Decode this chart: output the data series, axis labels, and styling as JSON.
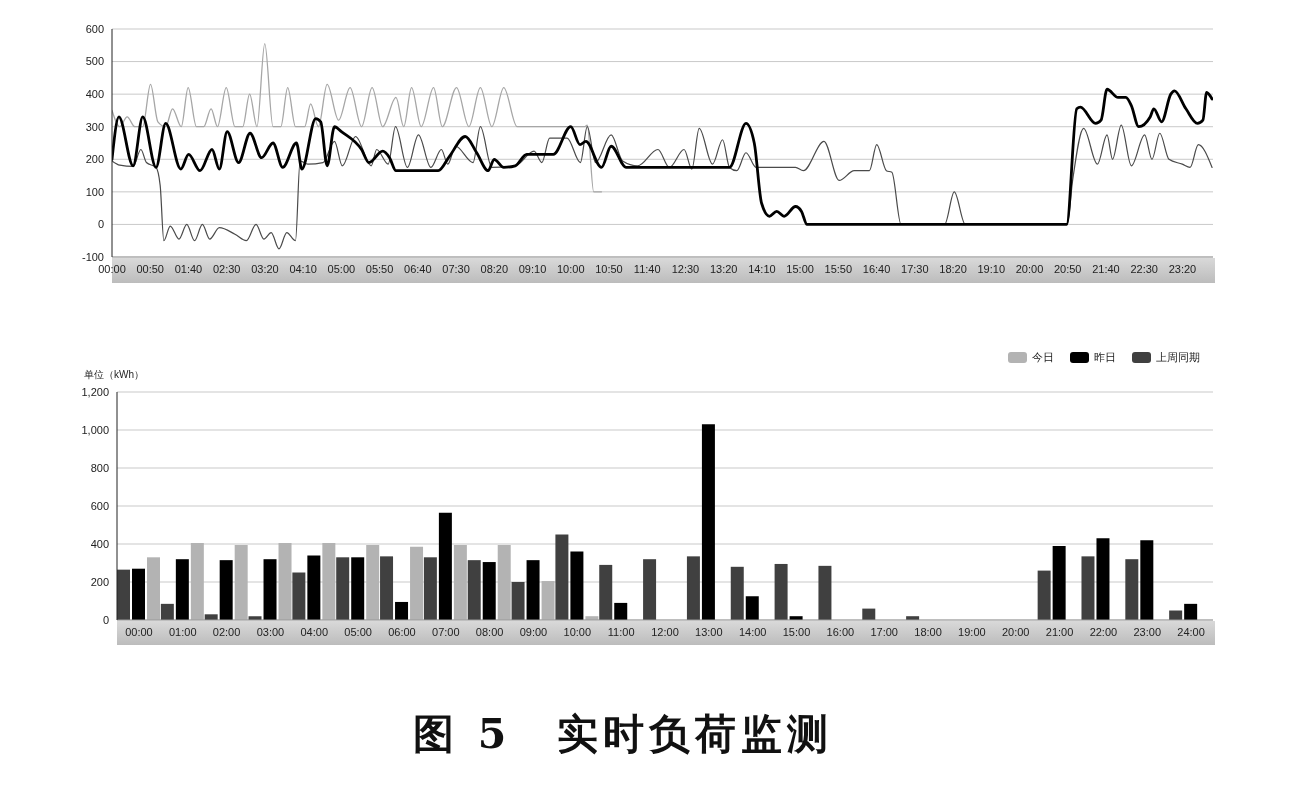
{
  "chart_data": [
    {
      "type": "line",
      "xlim": [
        0,
        24
      ],
      "xticks": [
        {
          "value": 0,
          "label": "00:00"
        },
        {
          "value": 0.8333,
          "label": "00:50"
        },
        {
          "value": 1.6667,
          "label": "01:40"
        },
        {
          "value": 2.5,
          "label": "02:30"
        },
        {
          "value": 3.3333,
          "label": "03:20"
        },
        {
          "value": 4.1667,
          "label": "04:10"
        },
        {
          "value": 5,
          "label": "05:00"
        },
        {
          "value": 5.8333,
          "label": "05:50"
        },
        {
          "value": 6.6667,
          "label": "06:40"
        },
        {
          "value": 7.5,
          "label": "07:30"
        },
        {
          "value": 8.3333,
          "label": "08:20"
        },
        {
          "value": 9.1667,
          "label": "09:10"
        },
        {
          "value": 10,
          "label": "10:00"
        },
        {
          "value": 10.8333,
          "label": "10:50"
        },
        {
          "value": 11.6667,
          "label": "11:40"
        },
        {
          "value": 12.5,
          "label": "12:30"
        },
        {
          "value": 13.3333,
          "label": "13:20"
        },
        {
          "value": 14.1667,
          "label": "14:10"
        },
        {
          "value": 15,
          "label": "15:00"
        },
        {
          "value": 15.8333,
          "label": "15:50"
        },
        {
          "value": 16.6667,
          "label": "16:40"
        },
        {
          "value": 17.5,
          "label": "17:30"
        },
        {
          "value": 18.3333,
          "label": "18:20"
        },
        {
          "value": 19.1667,
          "label": "19:10"
        },
        {
          "value": 20,
          "label": "20:00"
        },
        {
          "value": 20.8333,
          "label": "20:50"
        },
        {
          "value": 21.6667,
          "label": "21:40"
        },
        {
          "value": 22.5,
          "label": "22:30"
        },
        {
          "value": 23.3333,
          "label": "23:20"
        }
      ],
      "ylim": [
        -100,
        600
      ],
      "yticks": [
        -100,
        0,
        100,
        200,
        300,
        400,
        500,
        600
      ],
      "grid": "y",
      "marker": "none",
      "line_style": "solid",
      "series": [
        {
          "color": "#a6a6a6",
          "x": [
            0,
            0.17,
            0.33,
            0.5,
            0.67,
            0.84,
            1.0,
            1.17,
            1.32,
            1.51,
            1.66,
            1.84,
            2.0,
            2.16,
            2.3,
            2.49,
            2.68,
            2.85,
            3.0,
            3.16,
            3.33,
            3.51,
            3.68,
            3.83,
            4.0,
            4.2,
            4.33,
            4.5,
            4.69,
            4.94,
            5.19,
            5.44,
            5.67,
            5.9,
            6.19,
            6.36,
            6.53,
            6.74,
            7.01,
            7.2,
            7.51,
            7.78,
            8.03,
            8.28,
            8.54,
            8.83,
            10.3,
            10.36,
            10.5,
            10.67
          ],
          "values": [
            350,
            300,
            330,
            300,
            300,
            430,
            315,
            300,
            355,
            300,
            420,
            300,
            300,
            355,
            300,
            420,
            300,
            300,
            400,
            300,
            555,
            300,
            300,
            420,
            300,
            300,
            370,
            300,
            430,
            320,
            420,
            300,
            420,
            300,
            390,
            300,
            420,
            300,
            420,
            300,
            420,
            300,
            420,
            300,
            420,
            300,
            300,
            305,
            100,
            100
          ]
        },
        {
          "color": "#4a4a4a",
          "x": [
            0,
            0.17,
            0.46,
            0.63,
            0.75,
            0.96,
            1.05,
            1.13,
            1.27,
            1.46,
            1.63,
            1.8,
            1.97,
            2.13,
            2.34,
            2.68,
            2.93,
            3.14,
            3.31,
            3.47,
            3.64,
            3.81,
            4.0,
            4.1,
            4.27,
            4.6,
            4.85,
            5.02,
            5.31,
            5.65,
            5.77,
            6.02,
            6.18,
            6.44,
            6.68,
            6.95,
            7.18,
            7.32,
            7.49,
            7.87,
            8.03,
            8.28,
            8.79,
            9.2,
            9.37,
            9.54,
            9.92,
            10.21,
            10.36,
            10.54,
            10.88,
            11.13,
            11.46,
            11.9,
            12.15,
            12.47,
            12.64,
            12.8,
            13.09,
            13.31,
            13.46,
            13.62,
            13.82,
            14.04,
            14.9,
            15.07,
            15.52,
            15.85,
            16.18,
            16.51,
            16.67,
            16.88,
            17.0,
            17.2,
            18.15,
            18.36,
            18.6,
            20.82,
            20.94,
            21.18,
            21.48,
            21.69,
            21.81,
            22.0,
            22.22,
            22.51,
            22.67,
            22.84,
            23.04,
            23.33,
            23.5,
            23.68,
            23.98
          ],
          "values": [
            195,
            182,
            178,
            230,
            190,
            175,
            120,
            -50,
            -5,
            -45,
            0,
            -50,
            0,
            -45,
            -10,
            -30,
            -50,
            0,
            -45,
            -25,
            -75,
            -25,
            -50,
            195,
            185,
            190,
            255,
            180,
            270,
            180,
            230,
            185,
            300,
            175,
            275,
            175,
            230,
            185,
            240,
            190,
            300,
            175,
            180,
            225,
            190,
            265,
            265,
            190,
            300,
            190,
            275,
            195,
            180,
            230,
            175,
            230,
            170,
            295,
            185,
            260,
            175,
            165,
            220,
            175,
            175,
            165,
            255,
            135,
            165,
            165,
            245,
            165,
            160,
            0,
            0,
            100,
            0,
            0,
            135,
            295,
            185,
            275,
            200,
            305,
            180,
            275,
            200,
            280,
            200,
            185,
            175,
            245,
            175
          ]
        },
        {
          "color": "#000000",
          "x": [
            0,
            0.15,
            0.46,
            0.67,
            0.96,
            1.17,
            1.5,
            1.67,
            1.92,
            2.18,
            2.34,
            2.51,
            2.76,
            3.01,
            3.26,
            3.51,
            3.72,
            4.02,
            4.14,
            4.44,
            4.55,
            4.69,
            4.85,
            5.0,
            5.44,
            5.6,
            5.9,
            6.05,
            6.19,
            7.11,
            7.36,
            7.7,
            7.95,
            8.2,
            8.33,
            8.54,
            8.79,
            9.04,
            9.62,
            10.0,
            10.2,
            10.33,
            10.67,
            10.88,
            11.21,
            13.46,
            13.82,
            14.0,
            14.16,
            14.33,
            14.49,
            14.65,
            14.9,
            15.03,
            15.15,
            20.81,
            21.03,
            21.11,
            21.44,
            21.56,
            21.69,
            21.93,
            22.1,
            22.22,
            22.38,
            22.63,
            22.71,
            22.88,
            23.08,
            23.16,
            23.41,
            23.66,
            23.78,
            23.86,
            23.98
          ],
          "values": [
            200,
            330,
            180,
            330,
            175,
            310,
            170,
            215,
            165,
            230,
            170,
            285,
            190,
            280,
            205,
            250,
            175,
            250,
            170,
            325,
            315,
            180,
            300,
            285,
            230,
            190,
            225,
            205,
            165,
            165,
            210,
            270,
            220,
            165,
            200,
            175,
            180,
            215,
            215,
            300,
            245,
            255,
            175,
            240,
            175,
            175,
            310,
            250,
            65,
            25,
            40,
            25,
            55,
            40,
            0,
            0,
            355,
            360,
            310,
            320,
            415,
            390,
            390,
            365,
            300,
            330,
            355,
            315,
            400,
            410,
            355,
            310,
            320,
            405,
            385
          ]
        }
      ]
    },
    {
      "type": "bar",
      "ylabel": "单位（kWh）",
      "categories": [
        "00:00",
        "01:00",
        "02:00",
        "03:00",
        "04:00",
        "05:00",
        "06:00",
        "07:00",
        "08:00",
        "09:00",
        "10:00",
        "11:00",
        "12:00",
        "13:00",
        "14:00",
        "15:00",
        "16:00",
        "17:00",
        "18:00",
        "19:00",
        "20:00",
        "21:00",
        "22:00",
        "23:00",
        "24:00"
      ],
      "ylim": [
        0,
        1200
      ],
      "yticks": [
        0,
        200,
        400,
        600,
        800,
        {
          "value": 1000,
          "label": "1,000"
        },
        {
          "value": 1200,
          "label": "1,200"
        }
      ],
      "grid": "y",
      "legend": "top right",
      "series": [
        {
          "name": "今日",
          "color": "#b3b3b3",
          "values": [
            330,
            405,
            395,
            405,
            405,
            395,
            385,
            395,
            395,
            205,
            20,
            null,
            null,
            null,
            null,
            null,
            null,
            null,
            null,
            null,
            null,
            null,
            null,
            null,
            null
          ]
        },
        {
          "name": "昨日",
          "color": "#000000",
          "values": [
            270,
            320,
            315,
            320,
            340,
            330,
            95,
            565,
            305,
            315,
            360,
            90,
            null,
            1030,
            125,
            20,
            null,
            null,
            null,
            null,
            null,
            390,
            430,
            420,
            85
          ]
        },
        {
          "name": "上周同期",
          "color": "#404040",
          "values": [
            265,
            85,
            30,
            20,
            250,
            330,
            335,
            330,
            315,
            200,
            450,
            290,
            320,
            335,
            280,
            295,
            285,
            60,
            20,
            null,
            null,
            260,
            335,
            320,
            50
          ]
        }
      ],
      "annotations": [
        "图 5　实时负荷监测"
      ]
    }
  ]
}
